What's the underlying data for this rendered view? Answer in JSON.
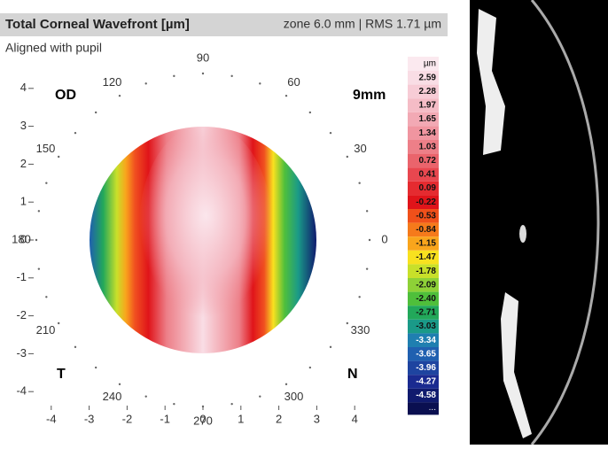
{
  "header": {
    "title": "Total Corneal Wavefront [µm]",
    "info": "zone 6.0 mm | RMS 1.71 µm"
  },
  "subtitle": "Aligned with pupil",
  "labels": {
    "eye": "OD",
    "size": "9mm",
    "temporal": "T",
    "nasal": "N"
  },
  "x_ticks": [
    "-4",
    "-3",
    "-2",
    "-1",
    "0",
    "1",
    "2",
    "3",
    "4"
  ],
  "y_ticks": [
    "4",
    "3",
    "2",
    "1",
    "0",
    "-1",
    "-2",
    "-3",
    "-4"
  ],
  "angles": [
    "0",
    "30",
    "60",
    "90",
    "120",
    "150",
    "180",
    "210",
    "240",
    "270",
    "300",
    "330"
  ],
  "colorbar": {
    "unit": "µm",
    "labels": [
      "2.59",
      "2.28",
      "1.97",
      "1.65",
      "1.34",
      "1.03",
      "0.72",
      "0.41",
      "0.09",
      "-0.22",
      "-0.53",
      "-0.84",
      "-1.15",
      "-1.47",
      "-1.78",
      "-2.09",
      "-2.40",
      "-2.71",
      "-3.03",
      "-3.34",
      "-3.65",
      "-3.96",
      "-4.27",
      "-4.58"
    ],
    "colors": [
      "#f9dde5",
      "#f7ccd6",
      "#f5bcc6",
      "#f2a9b4",
      "#f095a0",
      "#ed7f88",
      "#ea646c",
      "#e8474f",
      "#e52b30",
      "#e0141a",
      "#f0501a",
      "#f57a1b",
      "#f9a51c",
      "#f8e11f",
      "#c8e02a",
      "#8ed137",
      "#4fbf3b",
      "#22a85a",
      "#1a9a88",
      "#1f7fb0",
      "#2060b0",
      "#1e44a0",
      "#1a2a90",
      "#101a6e"
    ],
    "more": "..."
  }
}
